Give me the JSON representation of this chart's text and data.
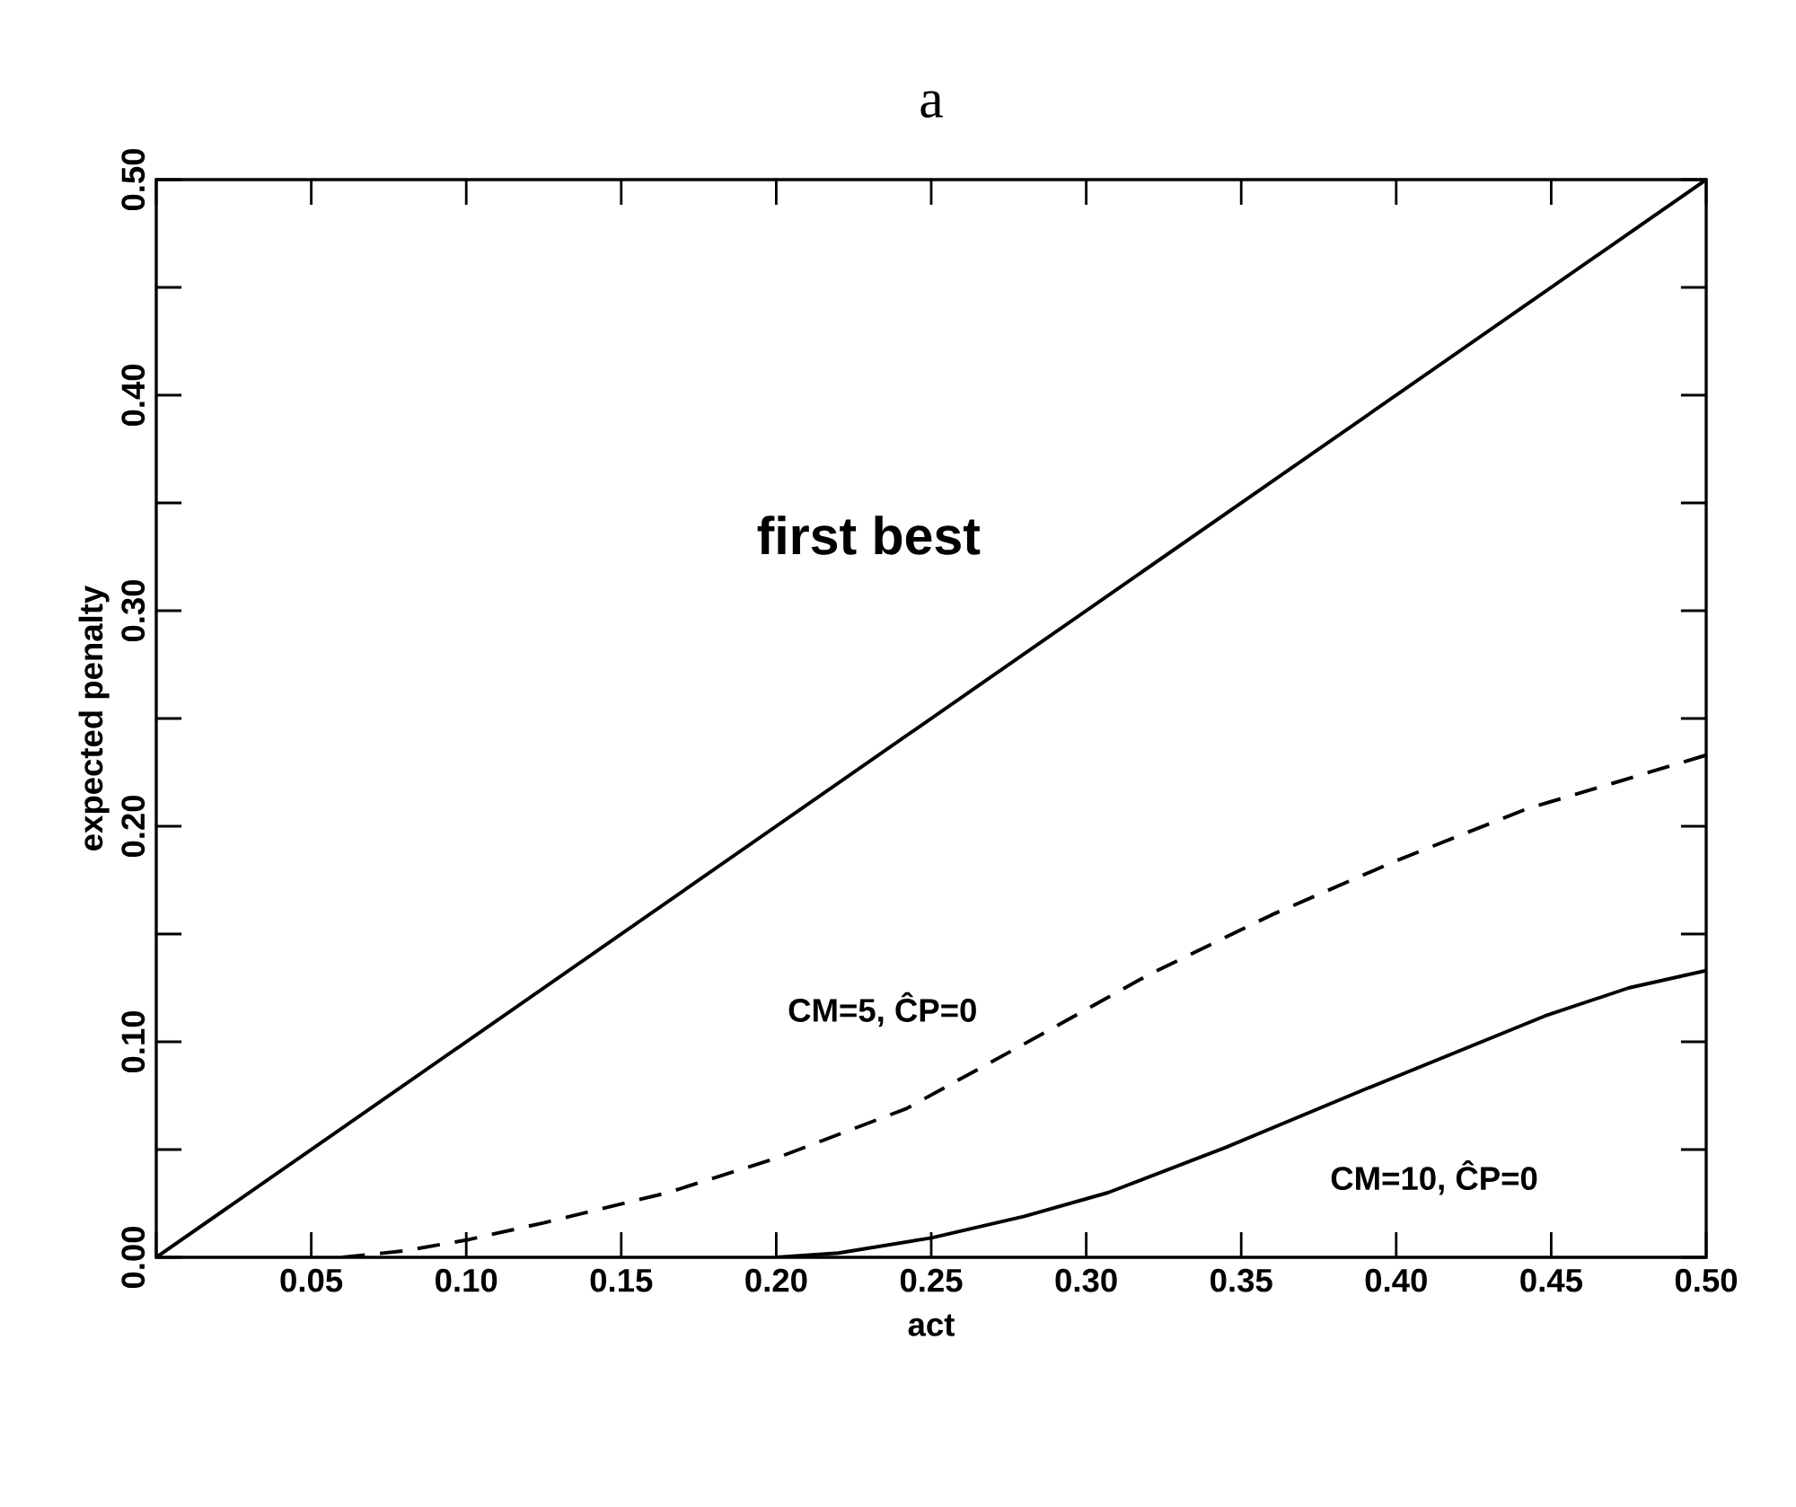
{
  "chart_data": {
    "type": "line",
    "title": "a",
    "xlabel": "act",
    "ylabel": "expected penalty",
    "xlim": [
      0,
      0.5
    ],
    "ylim": [
      0,
      0.5
    ],
    "xticks": [
      {
        "value": 0,
        "label": null
      },
      {
        "value": 0.05,
        "label": "0.05"
      },
      {
        "value": 0.1,
        "label": "0.10"
      },
      {
        "value": 0.15,
        "label": "0.15"
      },
      {
        "value": 0.2,
        "label": "0.20"
      },
      {
        "value": 0.25,
        "label": "0.25"
      },
      {
        "value": 0.3,
        "label": "0.30"
      },
      {
        "value": 0.35,
        "label": "0.35"
      },
      {
        "value": 0.4,
        "label": "0.40"
      },
      {
        "value": 0.45,
        "label": "0.45"
      },
      {
        "value": 0.5,
        "label": "0.50"
      }
    ],
    "yticks": [
      {
        "value": 0,
        "label": "0.00"
      },
      {
        "value": 0.05,
        "label": null
      },
      {
        "value": 0.1,
        "label": "0.10"
      },
      {
        "value": 0.15,
        "label": null
      },
      {
        "value": 0.2,
        "label": "0.20"
      },
      {
        "value": 0.25,
        "label": null
      },
      {
        "value": 0.3,
        "label": "0.30"
      },
      {
        "value": 0.35,
        "label": null
      },
      {
        "value": 0.4,
        "label": "0.40"
      },
      {
        "value": 0.45,
        "label": null
      },
      {
        "value": 0.5,
        "label": "0.50"
      }
    ],
    "grid": false,
    "legend": false,
    "marker": "none",
    "series": [
      {
        "name": "first best",
        "color": "#000000",
        "line_style": "solid",
        "x": [
          0,
          0.5
        ],
        "values": [
          0,
          0.5
        ]
      },
      {
        "name": "CM=5, ĈP=0",
        "color": "#000000",
        "line_style": "dashed",
        "x": [
          0.06,
          0.08,
          0.1,
          0.125,
          0.165,
          0.2,
          0.242,
          0.28,
          0.32,
          0.36,
          0.4,
          0.442,
          0.47,
          0.5
        ],
        "values": [
          0,
          0.003,
          0.008,
          0.016,
          0.03,
          0.046,
          0.069,
          0.099,
          0.131,
          0.159,
          0.184,
          0.208,
          0.22,
          0.233
        ]
      },
      {
        "name": "CM=10, ĈP=0",
        "color": "#000000",
        "line_style": "solid",
        "x": [
          0.2,
          0.22,
          0.25,
          0.28,
          0.307,
          0.345,
          0.39,
          0.448,
          0.475,
          0.5
        ],
        "values": [
          0,
          0.002,
          0.009,
          0.019,
          0.03,
          0.051,
          0.078,
          0.112,
          0.125,
          0.133
        ]
      }
    ]
  }
}
